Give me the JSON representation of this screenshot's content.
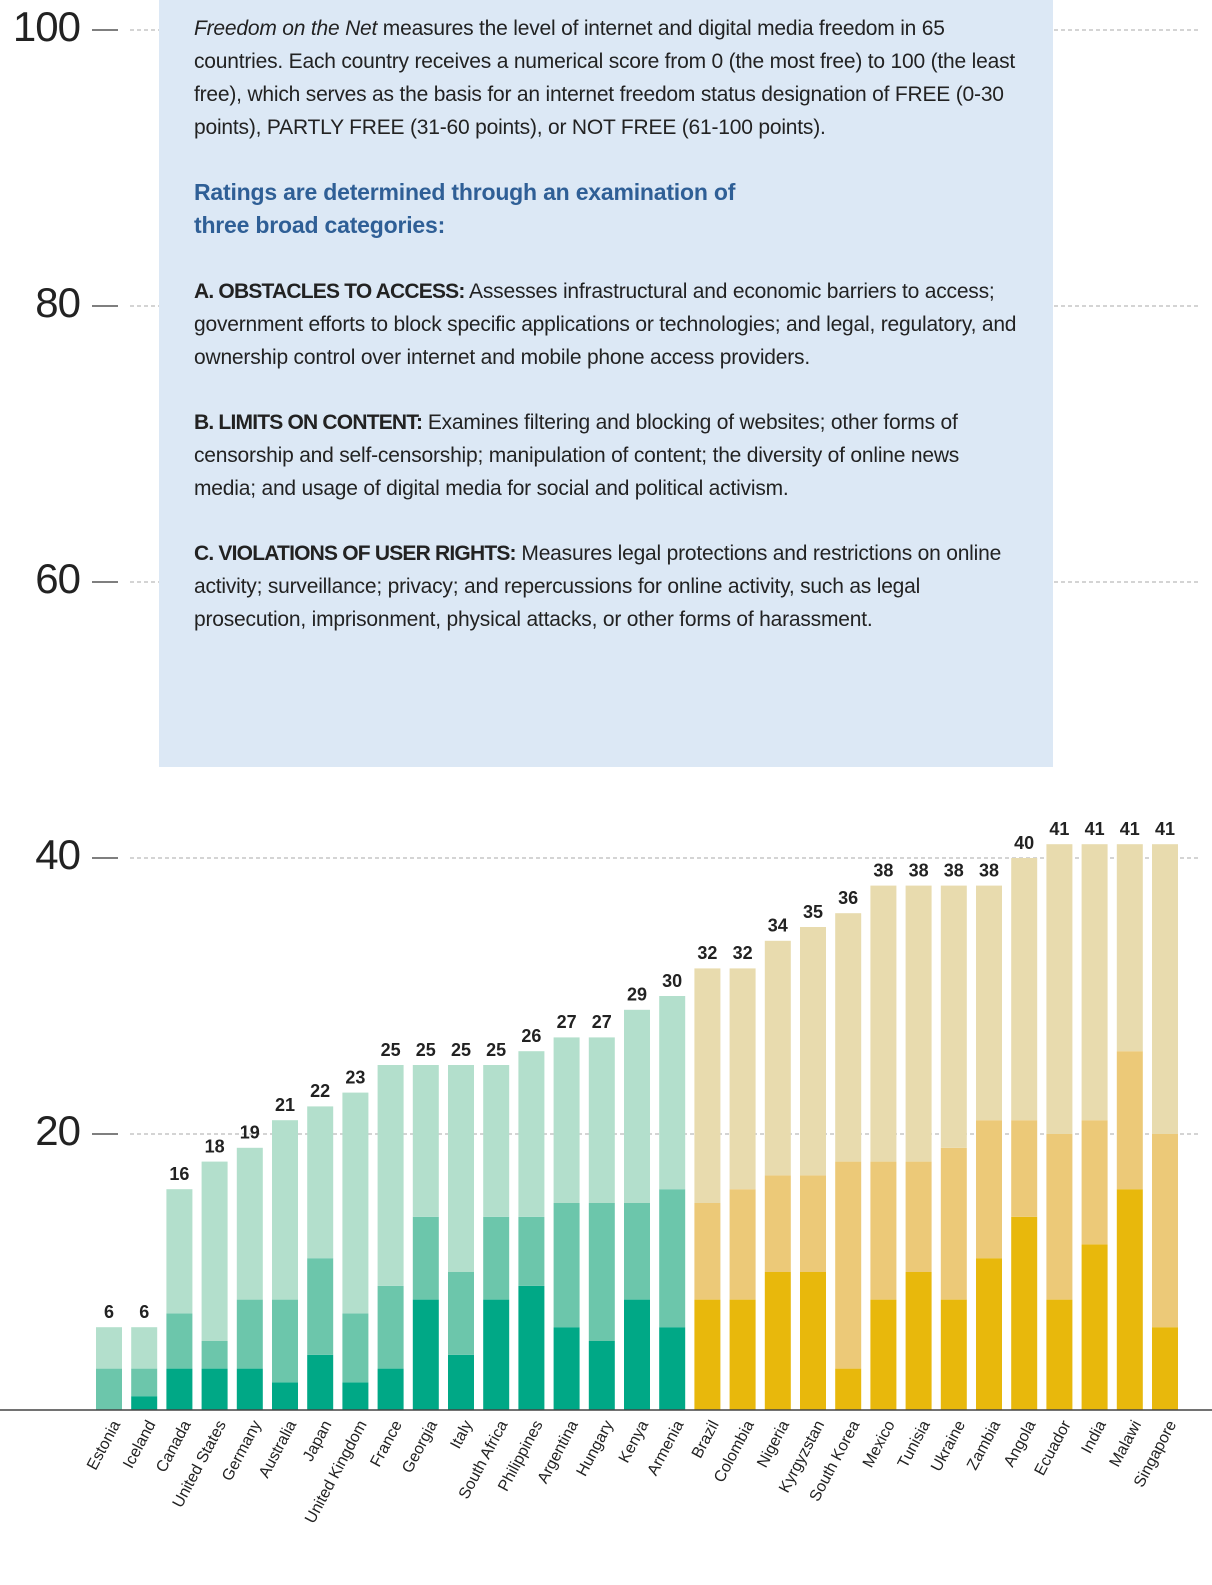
{
  "chart_data": {
    "type": "stacked_bar",
    "categories": [
      "Estonia",
      "Iceland",
      "Canada",
      "United States",
      "Germany",
      "Australia",
      "Japan",
      "United Kingdom",
      "France",
      "Georgia",
      "Italy",
      "South Africa",
      "Philippines",
      "Argentina",
      "Hungary",
      "Kenya",
      "Armenia",
      "Brazil",
      "Colombia",
      "Nigeria",
      "Kyrgyzstan",
      "South Korea",
      "Mexico",
      "Tunisia",
      "Ukraine",
      "Zambia",
      "Angola",
      "Ecuador",
      "India",
      "Malawi",
      "Singapore"
    ],
    "series": [
      {
        "name": "A. OBSTACLES TO ACCESS",
        "values": [
          0,
          1,
          3,
          3,
          3,
          2,
          4,
          2,
          3,
          8,
          4,
          8,
          9,
          6,
          5,
          8,
          6,
          8,
          8,
          10,
          10,
          3,
          8,
          10,
          8,
          11,
          14,
          8,
          12,
          16,
          6
        ],
        "colors": [
          "#00a886",
          "#00a886",
          "#00a886",
          "#00a886",
          "#00a886",
          "#00a886",
          "#00a886",
          "#00a886",
          "#00a886",
          "#00a886",
          "#00a886",
          "#00a886",
          "#00a886",
          "#00a886",
          "#00a886",
          "#00a886",
          "#00a886",
          "#e8b80c",
          "#e8b80c",
          "#e8b80c",
          "#e8b80c",
          "#e8b80c",
          "#e8b80c",
          "#e8b80c",
          "#e8b80c",
          "#e8b80c",
          "#e8b80c",
          "#e8b80c",
          "#e8b80c",
          "#e8b80c",
          "#e8b80c"
        ]
      },
      {
        "name": "B. LIMITS ON CONTENT",
        "values": [
          3,
          2,
          4,
          2,
          5,
          6,
          7,
          5,
          6,
          6,
          6,
          6,
          5,
          9,
          10,
          7,
          10,
          7,
          8,
          7,
          7,
          15,
          10,
          8,
          11,
          10,
          7,
          12,
          9,
          10,
          14
        ],
        "colors": [
          "#6cc6ab",
          "#6cc6ab",
          "#6cc6ab",
          "#6cc6ab",
          "#6cc6ab",
          "#6cc6ab",
          "#6cc6ab",
          "#6cc6ab",
          "#6cc6ab",
          "#6cc6ab",
          "#6cc6ab",
          "#6cc6ab",
          "#6cc6ab",
          "#6cc6ab",
          "#6cc6ab",
          "#6cc6ab",
          "#6cc6ab",
          "#ecc978",
          "#ecc978",
          "#ecc978",
          "#ecc978",
          "#ecc978",
          "#ecc978",
          "#ecc978",
          "#ecc978",
          "#ecc978",
          "#ecc978",
          "#ecc978",
          "#ecc978",
          "#ecc978",
          "#ecc978"
        ]
      },
      {
        "name": "C. VIOLATIONS OF USER RIGHTS",
        "values": [
          3,
          3,
          9,
          13,
          11,
          13,
          11,
          16,
          16,
          11,
          15,
          11,
          12,
          12,
          12,
          14,
          14,
          17,
          16,
          17,
          18,
          18,
          20,
          20,
          19,
          17,
          19,
          21,
          20,
          15,
          21
        ],
        "colors": [
          "#b3dfcc",
          "#b3dfcc",
          "#b3dfcc",
          "#b3dfcc",
          "#b3dfcc",
          "#b3dfcc",
          "#b3dfcc",
          "#b3dfcc",
          "#b3dfcc",
          "#b3dfcc",
          "#b3dfcc",
          "#b3dfcc",
          "#b3dfcc",
          "#b3dfcc",
          "#b3dfcc",
          "#b3dfcc",
          "#b3dfcc",
          "#e8dbae",
          "#e8dbae",
          "#e8dbae",
          "#e8dbae",
          "#e8dbae",
          "#e8dbae",
          "#e8dbae",
          "#e8dbae",
          "#e8dbae",
          "#e8dbae",
          "#e8dbae",
          "#e8dbae",
          "#e8dbae",
          "#e8dbae"
        ]
      }
    ],
    "totals": [
      6,
      6,
      16,
      18,
      19,
      21,
      22,
      23,
      25,
      25,
      25,
      25,
      26,
      27,
      27,
      29,
      30,
      32,
      32,
      34,
      35,
      36,
      38,
      38,
      38,
      38,
      40,
      41,
      41,
      41,
      41
    ],
    "ylim": [
      0,
      100
    ],
    "yticks": [
      20,
      40,
      60,
      80,
      100
    ],
    "grid": true
  },
  "info_box": {
    "intro_title": "Freedom on the Net",
    "intro_text": " measures the level of internet and digital media freedom in 65 countries. Each country receives a numerical score from 0 (the most free) to 100 (the least free), which serves as the basis for an internet freedom status designation of FREE (0-30 points), PARTLY FREE (31-60 points), or NOT FREE (61-100 points).",
    "heading": "Ratings are determined through an examination of three broad categories:",
    "items": [
      {
        "label": "A. OBSTACLES TO ACCESS:",
        "text": " Assesses infrastructural and economic barriers to access; government efforts to block specific applications or technologies; and legal, regulatory, and ownership control over internet and mobile phone access providers."
      },
      {
        "label": "B. LIMITS ON CONTENT:",
        "text": " Examines filtering and blocking of websites; other forms of censorship and self-censorship; manipulation of content; the diversity of online news media; and usage of digital media for social and political activism."
      },
      {
        "label": "C. VIOLATIONS OF USER RIGHTS:",
        "text": " Measures legal protections and restrictions on online activity; surveillance; privacy; and repercussions for online activity, such as legal prosecution, imprisonment, physical attacks, or other forms of harassment."
      }
    ]
  }
}
